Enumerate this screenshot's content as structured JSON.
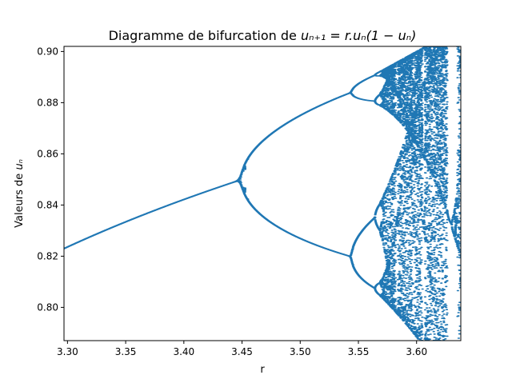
{
  "chart_data": {
    "type": "scatter",
    "title_prefix": "Diagramme de bifurcation de ",
    "title_formula": "uₙ₊₁ = r.uₙ(1 − uₙ)",
    "xlabel": "r",
    "ylabel_prefix": "Valeurs de ",
    "ylabel_var": "uₙ",
    "xlim": [
      3.297,
      3.638
    ],
    "ylim": [
      0.787,
      0.902
    ],
    "x_ticks": [
      3.3,
      3.35,
      3.4,
      3.45,
      3.5,
      3.55,
      3.6
    ],
    "x_tick_labels": [
      "3.30",
      "3.35",
      "3.40",
      "3.45",
      "3.50",
      "3.55",
      "3.60"
    ],
    "y_ticks": [
      0.8,
      0.82,
      0.84,
      0.86,
      0.88,
      0.9
    ],
    "y_tick_labels": [
      "0.80",
      "0.82",
      "0.84",
      "0.86",
      "0.88",
      "0.90"
    ],
    "grid": false,
    "marker_color": "#1f77b4",
    "r_range": [
      3.297,
      3.638
    ],
    "r_steps": 2200,
    "samples_per_r": 40,
    "transient_iterations": 400
  }
}
